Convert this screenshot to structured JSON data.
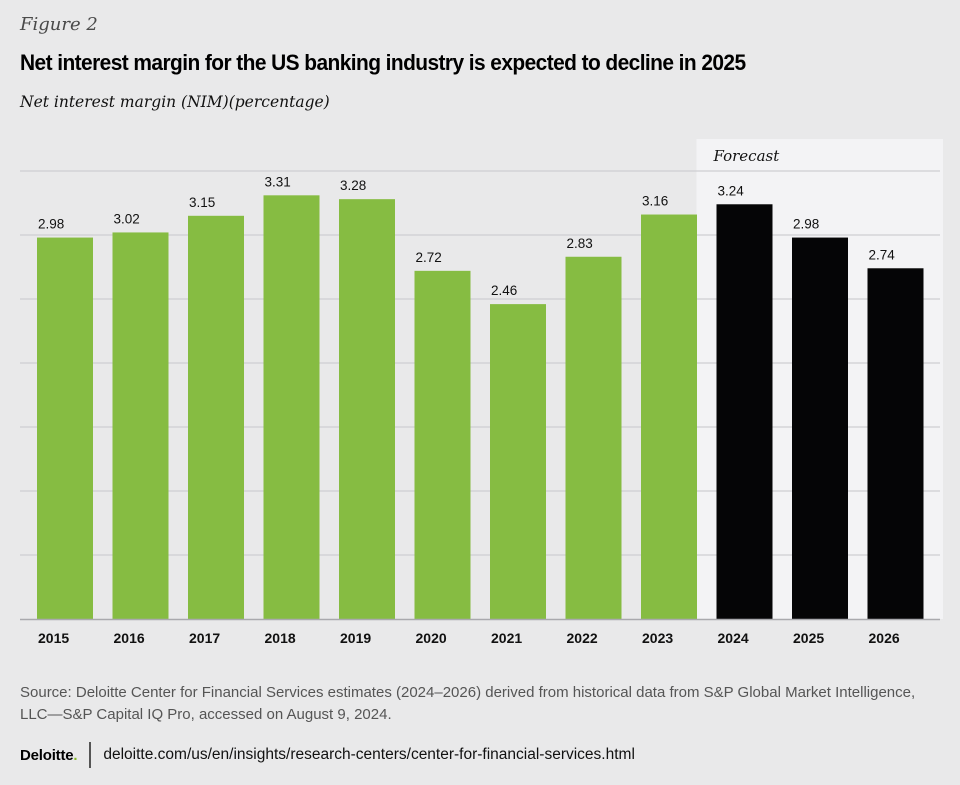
{
  "figure_label": "Figure 2",
  "title": "Net interest margin for the US banking industry is expected to decline in 2025",
  "subtitle": "Net interest margin (NIM)(percentage)",
  "source": "Source: Deloitte Center for Financial Services estimates (2024–2026) derived from historical data from S&P Global Market Intelligence, LLC—S&P Capital IQ Pro, accessed on August 9, 2024.",
  "footer": {
    "logo_text": "Deloitte",
    "logo_dot": ".",
    "url": "deloitte.com/us/en/insights/research-centers/center-for-financial-services.html"
  },
  "colors": {
    "historical": "#86bc42",
    "forecast": "#050506",
    "forecast_panel": "#f3f3f5",
    "gridline": "#cfcfd2",
    "axis": "#a9a9ad"
  },
  "chart_data": {
    "type": "bar",
    "title": "Net interest margin for the US banking industry is expected to decline in 2025",
    "xlabel": "",
    "ylabel": "Net interest margin (NIM)(percentage)",
    "categories": [
      "2015",
      "2016",
      "2017",
      "2018",
      "2019",
      "2020",
      "2021",
      "2022",
      "2023",
      "2024",
      "2025",
      "2026"
    ],
    "values": [
      2.98,
      3.02,
      3.15,
      3.31,
      3.28,
      2.72,
      2.46,
      2.83,
      3.16,
      3.24,
      2.98,
      2.74
    ],
    "forecast": [
      false,
      false,
      false,
      false,
      false,
      false,
      false,
      false,
      false,
      true,
      true,
      true
    ],
    "forecast_label": "Forecast",
    "ylim": [
      0,
      3.5
    ],
    "gridlines": [
      0.5,
      1.0,
      1.5,
      2.0,
      2.5,
      3.0,
      3.5
    ],
    "grid": true,
    "y_tick_labels_shown": false,
    "data_labels": true,
    "legend": "none"
  }
}
